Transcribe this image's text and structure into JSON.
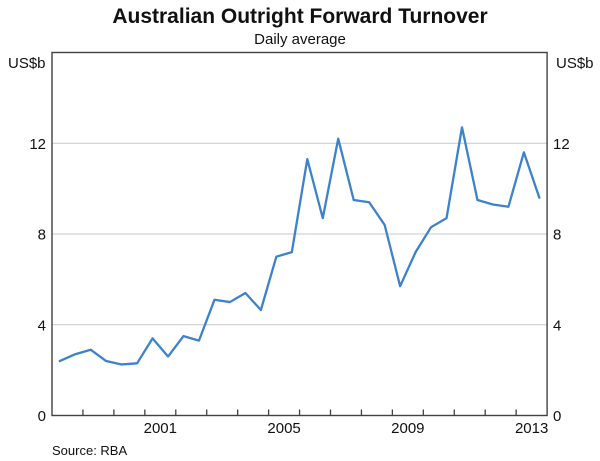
{
  "header": {
    "title": "Australian Outright Forward Turnover",
    "subtitle": "Daily average"
  },
  "footer": {
    "source": "Source: RBA"
  },
  "chart_data": {
    "type": "line",
    "title": "Australian Outright Forward Turnover",
    "subtitle": "Daily average",
    "ylabel_left": "US$b",
    "ylabel_right": "US$b",
    "ylim": [
      0,
      16
    ],
    "xlim": [
      1998,
      2014
    ],
    "y_tick_labels": [
      0,
      4,
      8,
      12
    ],
    "y_gridlines": [
      4,
      8,
      12
    ],
    "x_minor_tick_years": [
      1999,
      2000,
      2001,
      2002,
      2003,
      2004,
      2005,
      2006,
      2007,
      2008,
      2009,
      2010,
      2011,
      2012,
      2013
    ],
    "x_axis_labels": [
      2001,
      2005,
      2009,
      2013
    ],
    "legend": "none",
    "grid": "horizontal-only",
    "x": [
      1998.25,
      1998.75,
      1999.25,
      1999.75,
      2000.25,
      2000.75,
      2001.25,
      2001.75,
      2002.25,
      2002.75,
      2003.25,
      2003.75,
      2004.25,
      2004.75,
      2005.25,
      2005.75,
      2006.25,
      2006.75,
      2007.25,
      2007.75,
      2008.25,
      2008.75,
      2009.25,
      2009.75,
      2010.25,
      2010.75,
      2011.25,
      2011.75,
      2012.25,
      2012.75,
      2013.25,
      2013.75
    ],
    "series": [
      {
        "name": "Australian outright forward turnover (daily average)",
        "period_labels": [
          "1998 H1",
          "1998 H2",
          "1999 H1",
          "1999 H2",
          "2000 H1",
          "2000 H2",
          "2001 H1",
          "2001 H2",
          "2002 H1",
          "2002 H2",
          "2003 H1",
          "2003 H2",
          "2004 H1",
          "2004 H2",
          "2005 H1",
          "2005 H2",
          "2006 H1",
          "2006 H2",
          "2007 H1",
          "2007 H2",
          "2008 H1",
          "2008 H2",
          "2009 H1",
          "2009 H2",
          "2010 H1",
          "2010 H2",
          "2011 H1",
          "2011 H2",
          "2012 H1",
          "2012 H2",
          "2013 H1",
          "2013 H2"
        ],
        "values": [
          2.4,
          2.7,
          2.9,
          2.4,
          2.25,
          2.3,
          3.4,
          2.6,
          3.5,
          3.3,
          5.1,
          5.0,
          5.4,
          4.65,
          7.0,
          7.2,
          11.3,
          8.7,
          12.2,
          9.5,
          9.4,
          8.4,
          5.7,
          7.2,
          8.3,
          8.7,
          12.7,
          9.5,
          9.3,
          9.2,
          11.6,
          9.6
        ]
      }
    ],
    "colors": {
      "line": "#3d82cd",
      "gridline": "#c9c9c9",
      "frame": "#424242",
      "text": "#111111"
    },
    "source": "Source: RBA"
  }
}
